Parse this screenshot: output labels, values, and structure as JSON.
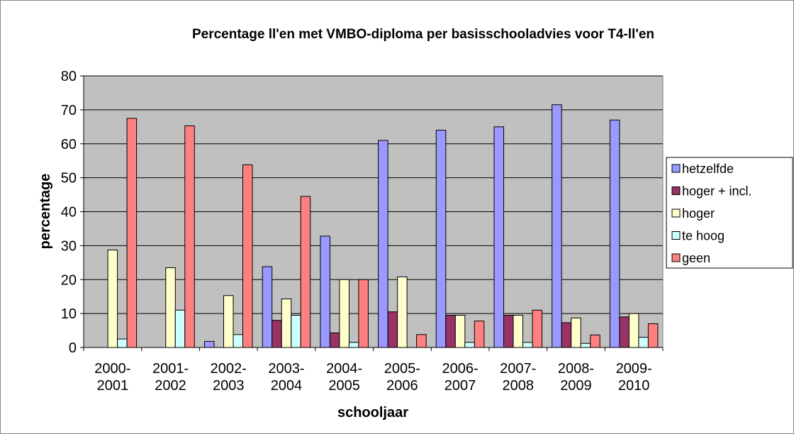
{
  "chart_data": {
    "type": "bar",
    "title": "Percentage ll'en met VMBO-diploma per basisschooladvies voor T4-ll'en",
    "x_label": "schooljaar",
    "y_label": "percentage",
    "categories": [
      "2000-2001",
      "2001-2002",
      "2002-2003",
      "2003-2004",
      "2004-2005",
      "2005-2006",
      "2006-2007",
      "2007-2008",
      "2008-2009",
      "2009-2010"
    ],
    "series": [
      {
        "name": "hetzelfde",
        "color": "#9999ff",
        "values": [
          0,
          0,
          1.8,
          23.8,
          32.8,
          61,
          64,
          65,
          71.5,
          67
        ]
      },
      {
        "name": "hoger + incl.",
        "color": "#993366",
        "values": [
          0,
          0,
          0,
          8,
          4.3,
          10.5,
          9.5,
          9.5,
          7.3,
          9
        ]
      },
      {
        "name": "hoger",
        "color": "#ffffcc",
        "values": [
          28.7,
          23.5,
          15.3,
          14.3,
          20,
          20.8,
          9.5,
          9.5,
          8.7,
          10
        ]
      },
      {
        "name": "te hoog",
        "color": "#ccffff",
        "values": [
          2.5,
          11,
          3.8,
          9.5,
          1.5,
          0,
          1.5,
          1.5,
          1.2,
          3
        ]
      },
      {
        "name": "geen",
        "color": "#ff8080",
        "values": [
          67.5,
          65.3,
          53.8,
          44.5,
          20,
          3.8,
          7.8,
          11,
          3.7,
          7
        ]
      }
    ],
    "ylim": [
      0,
      80
    ],
    "yticks": [
      0,
      10,
      20,
      30,
      40,
      50,
      60,
      70,
      80
    ],
    "grid": true,
    "legend": "right",
    "plot_background": "#c0c0c0"
  }
}
